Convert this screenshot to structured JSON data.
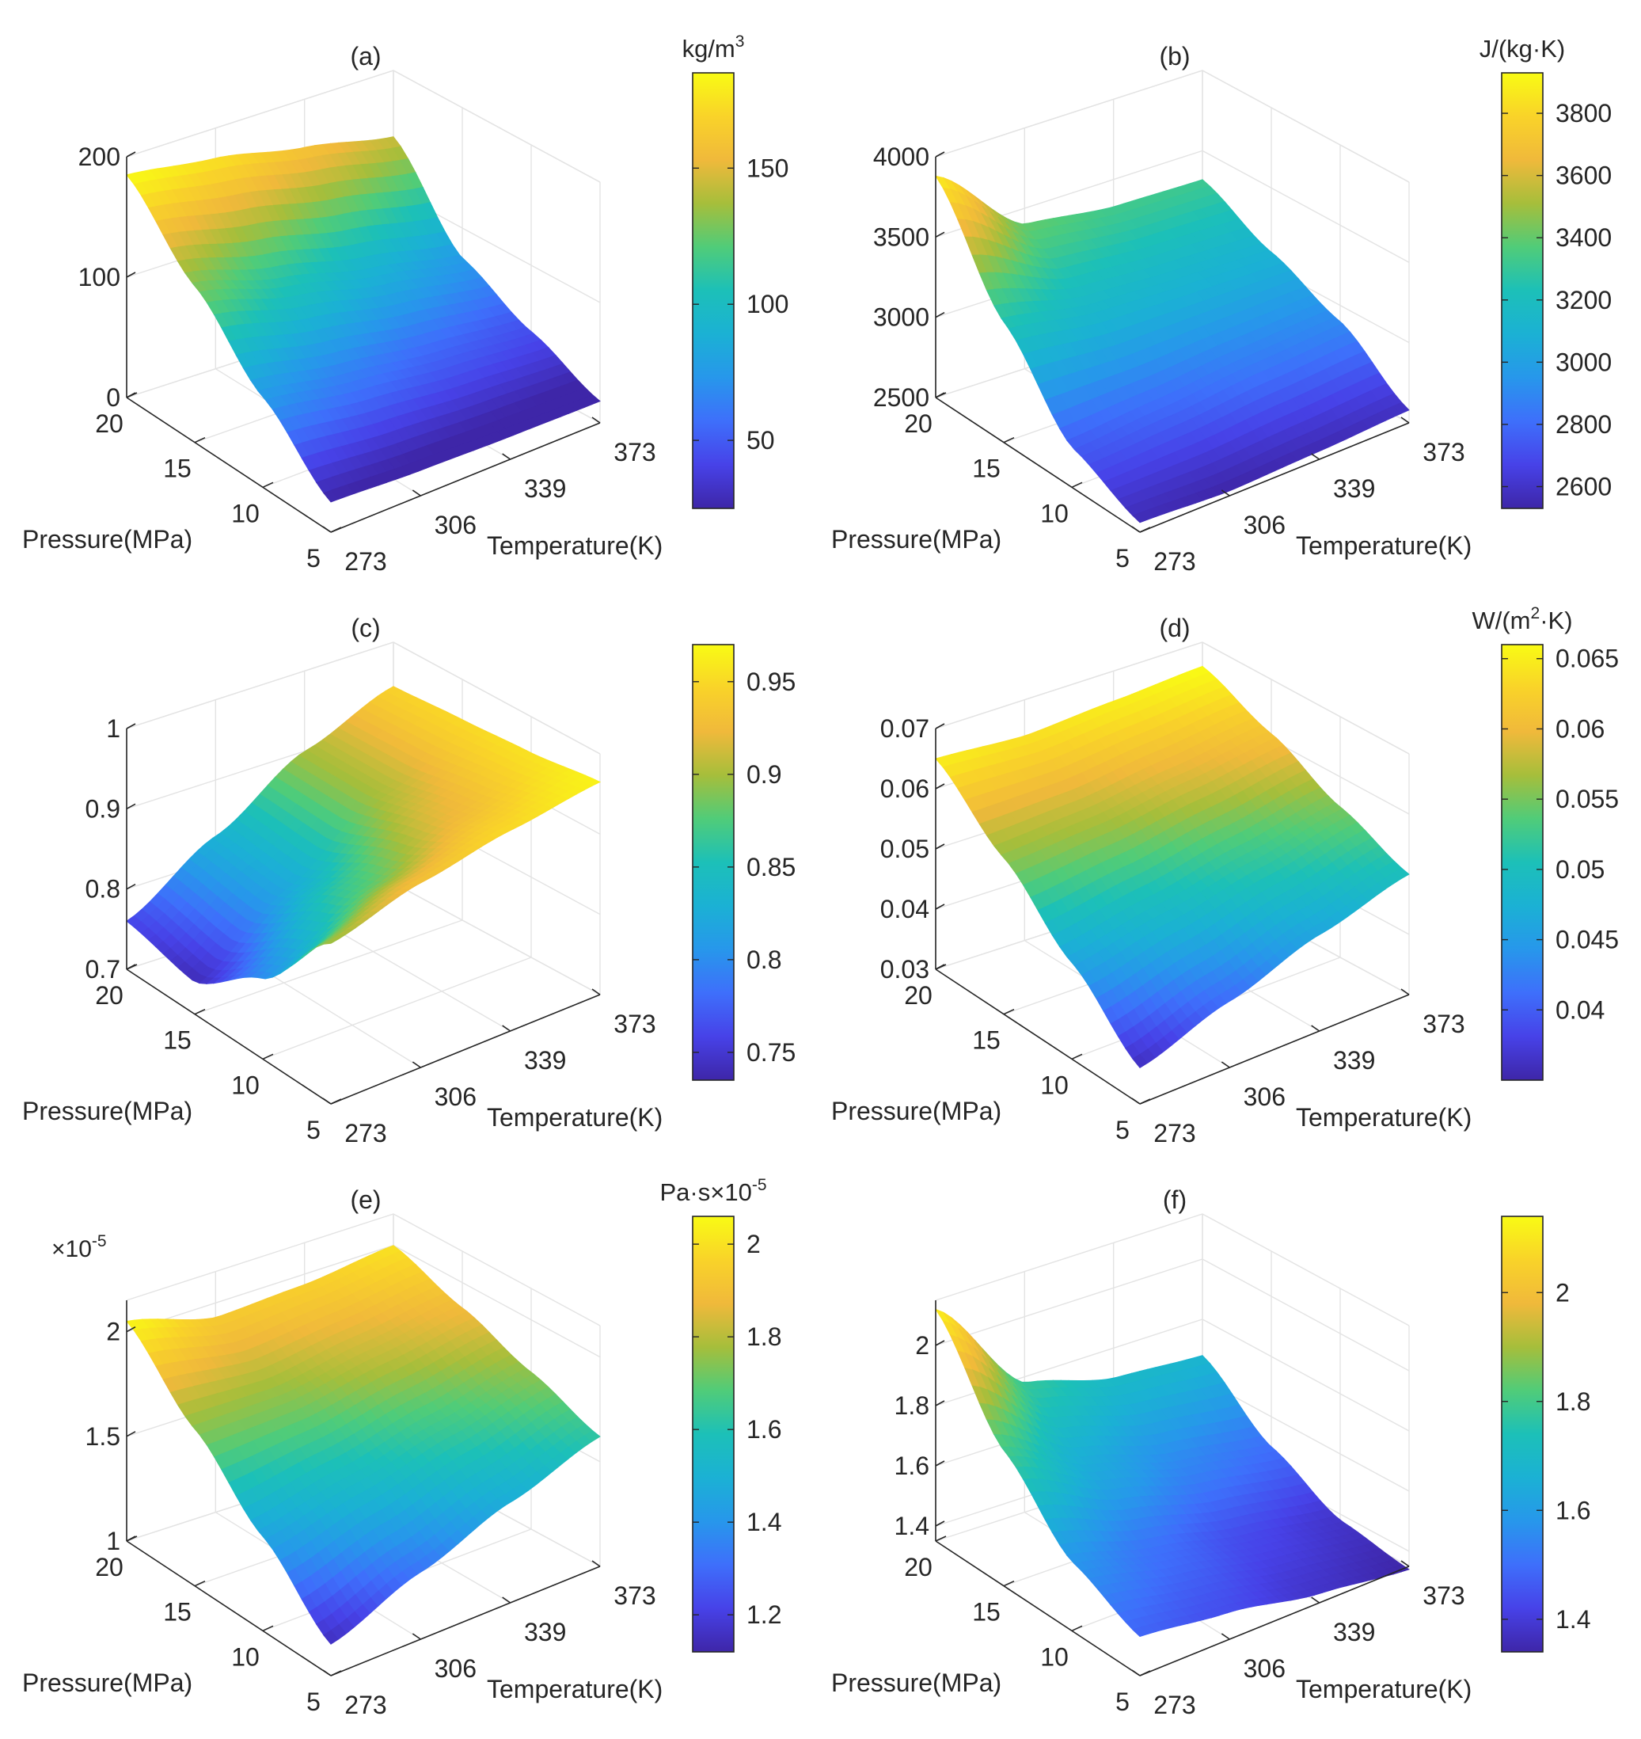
{
  "figure": {
    "colormap": [
      "#3e26a8",
      "#4742e8",
      "#3e6ffb",
      "#2797eb",
      "#1bb1d4",
      "#1cc0b8",
      "#50cc79",
      "#a6be3b",
      "#f0b93b",
      "#f9d329",
      "#f9fb14"
    ]
  },
  "chart_data": [
    {
      "id": "a",
      "type": "surface",
      "title": "(a)",
      "xlabel": "Temperature(K)",
      "ylabel": "Pressure(MPa)",
      "x_ticks": [
        "273",
        "306",
        "339",
        "373"
      ],
      "y_ticks": [
        "5",
        "10",
        "15",
        "20"
      ],
      "zlim": [
        0,
        200
      ],
      "z_ticks": [
        "0",
        "100",
        "200"
      ],
      "z_exponent": "",
      "colorbar": {
        "label": "kg/m",
        "label_sup": "3",
        "range": [
          25,
          185
        ],
        "ticks": [
          "50",
          "100",
          "150"
        ],
        "tick_values": [
          50,
          100,
          150
        ]
      },
      "corners": {
        "T273_P20": 185,
        "T373_P20": 145,
        "T373_P5": 18,
        "T273_P5": 25
      },
      "surface_z": {
        "T": [
          273,
          306,
          339,
          373
        ],
        "P": [
          5,
          10,
          15,
          20
        ],
        "values": [
          [
            25,
            21,
            19,
            18
          ],
          [
            75,
            62,
            52,
            45
          ],
          [
            130,
            108,
            90,
            75
          ],
          [
            185,
            175,
            160,
            145
          ]
        ]
      }
    },
    {
      "id": "b",
      "type": "surface",
      "title": "(b)",
      "xlabel": "Temperature(K)",
      "ylabel": "Pressure(MPa)",
      "x_ticks": [
        "273",
        "306",
        "339",
        "373"
      ],
      "y_ticks": [
        "5",
        "10",
        "15",
        "20"
      ],
      "zlim": [
        2500,
        4000
      ],
      "z_ticks": [
        "2500",
        "3000",
        "3500",
        "4000"
      ],
      "z_exponent": "",
      "colorbar": {
        "label": "J/(kg·K)",
        "label_sup": "",
        "range": [
          2530,
          3930
        ],
        "ticks": [
          "2600",
          "2800",
          "3000",
          "3200",
          "3400",
          "3600",
          "3800"
        ],
        "tick_values": [
          2600,
          2800,
          3000,
          3200,
          3400,
          3600,
          3800
        ]
      },
      "corners": {
        "T273_P20": 3880,
        "T373_P20": 3320,
        "T373_P5": 2580,
        "T273_P5": 2560
      },
      "surface_z": {
        "T": [
          273,
          306,
          339,
          373
        ],
        "P": [
          5,
          10,
          15,
          20
        ],
        "values": [
          [
            2560,
            2530,
            2550,
            2580
          ],
          [
            2750,
            2800,
            2860,
            2900
          ],
          [
            3250,
            3150,
            3120,
            3100
          ],
          [
            3880,
            3400,
            3330,
            3320
          ]
        ]
      }
    },
    {
      "id": "c",
      "type": "surface",
      "title": "(c)",
      "xlabel": "Temperature(K)",
      "ylabel": "Pressure(MPa)",
      "x_ticks": [
        "273",
        "306",
        "339",
        "373"
      ],
      "y_ticks": [
        "5",
        "10",
        "15",
        "20"
      ],
      "zlim": [
        0.7,
        1.0
      ],
      "z_ticks": [
        "0.7",
        "0.8",
        "0.9",
        "1"
      ],
      "z_exponent": "",
      "colorbar": {
        "label": "",
        "label_sup": "",
        "range": [
          0.735,
          0.97
        ],
        "ticks": [
          "0.75",
          "0.8",
          "0.85",
          "0.9",
          "0.95"
        ],
        "tick_values": [
          0.75,
          0.8,
          0.85,
          0.9,
          0.95
        ]
      },
      "corners": {
        "T273_P20": 0.76,
        "T373_P20": 0.945,
        "T373_P5": 0.965,
        "T273_P5": 0.9
      },
      "surface_z": {
        "T": [
          273,
          306,
          339,
          373
        ],
        "P": [
          5,
          10,
          15,
          20
        ],
        "values": [
          [
            0.9,
            0.93,
            0.95,
            0.965
          ],
          [
            0.8,
            0.87,
            0.92,
            0.955
          ],
          [
            0.74,
            0.82,
            0.9,
            0.95
          ],
          [
            0.76,
            0.83,
            0.9,
            0.945
          ]
        ]
      }
    },
    {
      "id": "d",
      "type": "surface",
      "title": "(d)",
      "xlabel": "Temperature(K)",
      "ylabel": "Pressure(MPa)",
      "x_ticks": [
        "273",
        "306",
        "339",
        "373"
      ],
      "y_ticks": [
        "5",
        "10",
        "15",
        "20"
      ],
      "zlim": [
        0.03,
        0.07
      ],
      "z_ticks": [
        "0.03",
        "0.04",
        "0.05",
        "0.06",
        "0.07"
      ],
      "z_exponent": "",
      "colorbar": {
        "label": "W/(m",
        "label_sup": "2",
        "label_after": "·K)",
        "range": [
          0.035,
          0.066
        ],
        "ticks": [
          "0.04",
          "0.045",
          "0.05",
          "0.055",
          "0.06",
          "0.065"
        ],
        "tick_values": [
          0.04,
          0.045,
          0.05,
          0.055,
          0.06,
          0.065
        ]
      },
      "corners": {
        "T273_P20": 0.065,
        "T373_P20": 0.066,
        "T373_P5": 0.05,
        "T273_P5": 0.036
      },
      "surface_z": {
        "T": [
          273,
          306,
          339,
          373
        ],
        "P": [
          5,
          10,
          15,
          20
        ],
        "values": [
          [
            0.036,
            0.041,
            0.046,
            0.05
          ],
          [
            0.046,
            0.049,
            0.052,
            0.055
          ],
          [
            0.056,
            0.057,
            0.059,
            0.061
          ],
          [
            0.065,
            0.064,
            0.065,
            0.066
          ]
        ]
      }
    },
    {
      "id": "e",
      "type": "surface",
      "title": "(e)",
      "xlabel": "Temperature(K)",
      "ylabel": "Pressure(MPa)",
      "x_ticks": [
        "273",
        "306",
        "339",
        "373"
      ],
      "y_ticks": [
        "5",
        "10",
        "15",
        "20"
      ],
      "zlim": [
        1.0,
        2.15
      ],
      "z_ticks": [
        "1",
        "1.5",
        "2"
      ],
      "z_exponent": "×10",
      "z_exponent_sup": "-5",
      "colorbar": {
        "label": "Pa·s",
        "label_sup": "",
        "exponent": "×10",
        "exponent_sup": "-5",
        "range": [
          1.12,
          2.06
        ],
        "ticks": [
          "1.2",
          "1.4",
          "1.6",
          "1.8",
          "2"
        ],
        "tick_values": [
          1.2,
          1.4,
          1.6,
          1.8,
          2.0
        ]
      },
      "corners": {
        "T273_P20": 2.05,
        "T373_P20": 2.0,
        "T373_P5": 1.62,
        "T273_P5": 1.15
      },
      "surface_z": {
        "T": [
          273,
          306,
          339,
          373
        ],
        "P": [
          5,
          10,
          15,
          20
        ],
        "values": [
          [
            1.15,
            1.32,
            1.48,
            1.62
          ],
          [
            1.45,
            1.55,
            1.65,
            1.75
          ],
          [
            1.75,
            1.75,
            1.82,
            1.88
          ],
          [
            2.05,
            1.93,
            1.95,
            2.0
          ]
        ]
      }
    },
    {
      "id": "f",
      "type": "surface",
      "title": "(f)",
      "xlabel": "Temperature(K)",
      "ylabel": "Pressure(MPa)",
      "x_ticks": [
        "273",
        "306",
        "339",
        "373"
      ],
      "y_ticks": [
        "5",
        "10",
        "15",
        "20"
      ],
      "zlim": [
        1.35,
        2.15
      ],
      "z_ticks": [
        "1.4",
        "1.6",
        "1.8",
        "2"
      ],
      "z_exponent": "",
      "colorbar": {
        "label": "",
        "label_sup": "",
        "range": [
          1.34,
          2.14
        ],
        "ticks": [
          "1.4",
          "1.6",
          "1.8",
          "2"
        ],
        "tick_values": [
          1.4,
          1.6,
          1.8,
          2.0
        ]
      },
      "corners": {
        "T273_P20": 2.12,
        "T373_P20": 1.68,
        "T373_P5": 1.34,
        "T273_P5": 1.48
      },
      "surface_z": {
        "T": [
          273,
          306,
          339,
          373
        ],
        "P": [
          5,
          10,
          15,
          20
        ],
        "values": [
          [
            1.48,
            1.44,
            1.38,
            1.34
          ],
          [
            1.58,
            1.5,
            1.43,
            1.38
          ],
          [
            1.8,
            1.64,
            1.55,
            1.5
          ],
          [
            2.12,
            1.78,
            1.7,
            1.68
          ]
        ]
      }
    }
  ]
}
